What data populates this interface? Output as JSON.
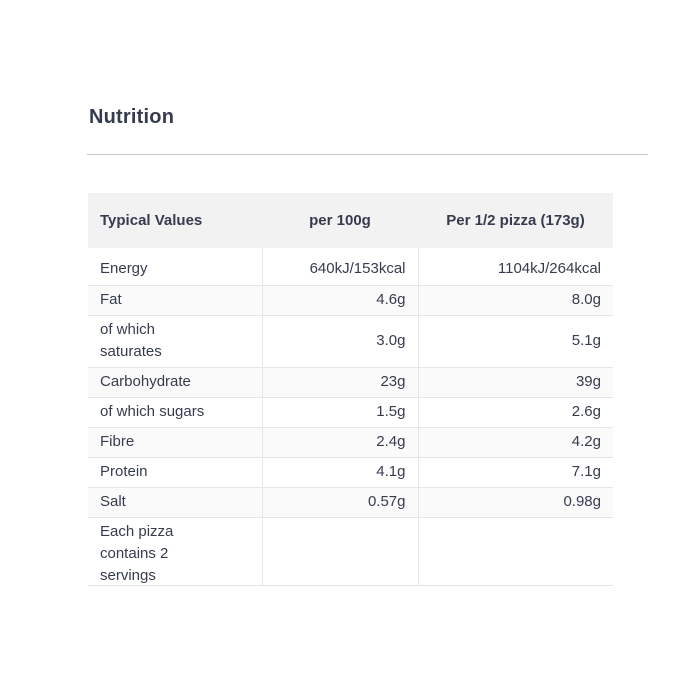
{
  "section": {
    "title": "Nutrition"
  },
  "table": {
    "columns": [
      {
        "label": "Typical Values"
      },
      {
        "label": "per 100g"
      },
      {
        "label": "Per 1/2 pizza (173g)"
      }
    ],
    "rows": [
      {
        "label": "Energy",
        "per_100g": "640kJ/153kcal",
        "per_half_pizza": "1104kJ/264kcal"
      },
      {
        "label": "Fat",
        "per_100g": "4.6g",
        "per_half_pizza": "8.0g"
      },
      {
        "label": "of which saturates",
        "per_100g": "3.0g",
        "per_half_pizza": "5.1g"
      },
      {
        "label": "Carbohydrate",
        "per_100g": "23g",
        "per_half_pizza": "39g"
      },
      {
        "label": "of which sugars",
        "per_100g": "1.5g",
        "per_half_pizza": "2.6g"
      },
      {
        "label": "Fibre",
        "per_100g": "2.4g",
        "per_half_pizza": "4.2g"
      },
      {
        "label": "Protein",
        "per_100g": "4.1g",
        "per_half_pizza": "7.1g"
      },
      {
        "label": "Salt",
        "per_100g": "0.57g",
        "per_half_pizza": "0.98g"
      },
      {
        "label": "Each pizza contains 2 servings",
        "per_100g": "",
        "per_half_pizza": ""
      }
    ],
    "colors": {
      "text": "#363c4e",
      "header_background": "#f2f2f2",
      "row_stripe": "#fafafa",
      "cell_border": "#e6e6e6",
      "section_divider": "#c9c9c9"
    }
  }
}
